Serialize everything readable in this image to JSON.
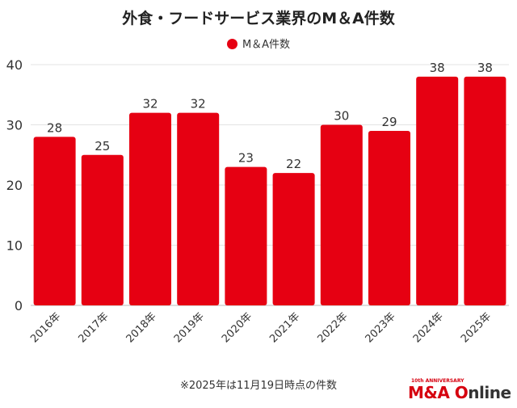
{
  "chart_data": {
    "type": "bar",
    "title": "外食・フードサービス業界のM＆A件数",
    "categories": [
      "2016年",
      "2017年",
      "2018年",
      "2019年",
      "2020年",
      "2021年",
      "2022年",
      "2023年",
      "2024年",
      "2025年"
    ],
    "series": [
      {
        "name": "M＆A件数",
        "values": [
          28,
          25,
          32,
          32,
          23,
          22,
          30,
          29,
          38,
          38
        ],
        "color": "#e60012"
      }
    ],
    "ylim": [
      0,
      40
    ],
    "yticks": [
      0,
      10,
      20,
      30,
      40
    ],
    "grid": true,
    "legend": "top",
    "data_labels": true
  },
  "note": "※2025年は11月19日時点の件数",
  "logo": {
    "anniversary": "10th ANNIVERSARY",
    "brand_red": "M&A O",
    "brand_dark": "nline"
  }
}
